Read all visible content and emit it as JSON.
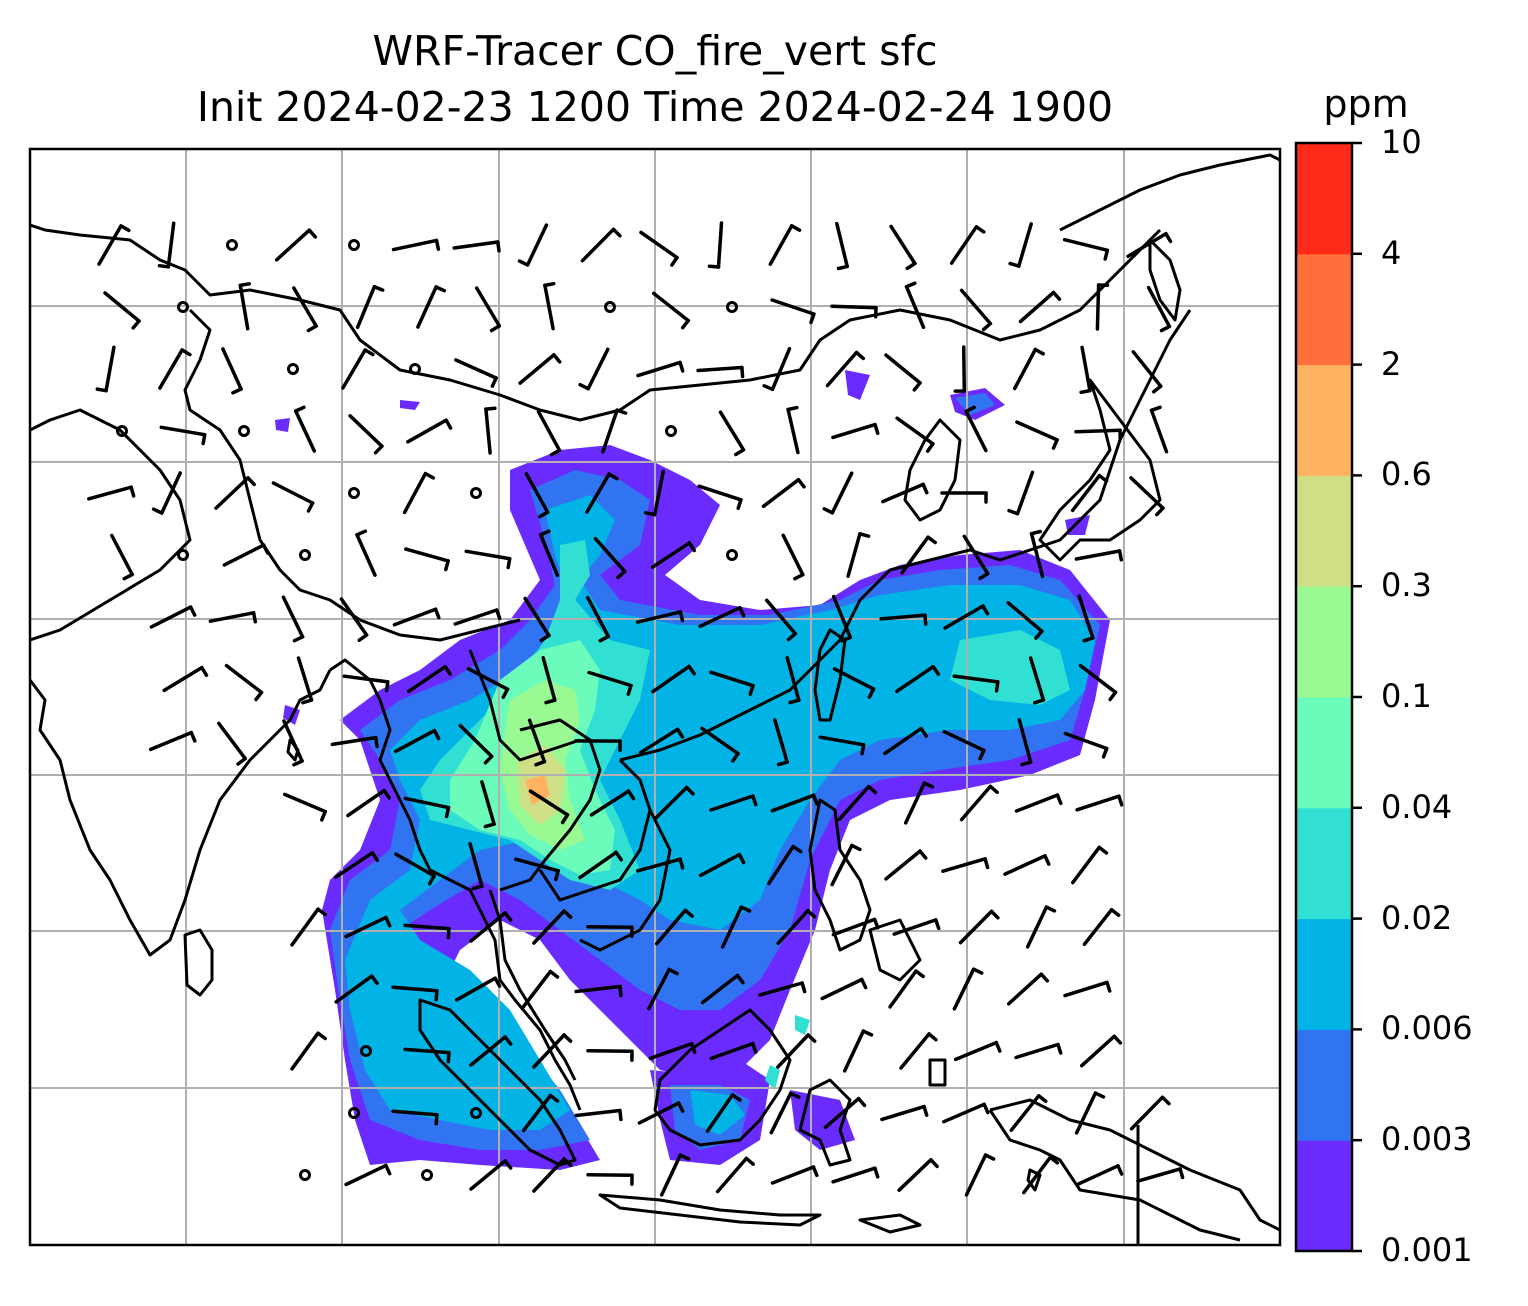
{
  "title": "WRF-Tracer CO_fire_vert sfc",
  "subtitle": "Init 2024-02-23 1200 Time 2024-02-24 1900",
  "colorbar": {
    "unit": "ppm",
    "levels": [
      "0.001",
      "0.003",
      "0.006",
      "0.02",
      "0.04",
      "0.1",
      "0.3",
      "0.6",
      "2",
      "4",
      "10"
    ],
    "colors": [
      "#6a2bff",
      "#3174f2",
      "#02b3e6",
      "#31dfd3",
      "#6bfcbb",
      "#99f993",
      "#cfdf85",
      "#ffb360",
      "#ff6f3b",
      "#ff2a17"
    ]
  },
  "map": {
    "projection": "grid",
    "gridlines": true,
    "coastlines": true,
    "overlay": "wind barbs",
    "shading_colors": {
      "land_lines": "#000000",
      "grid": "#b0b0b0"
    }
  }
}
